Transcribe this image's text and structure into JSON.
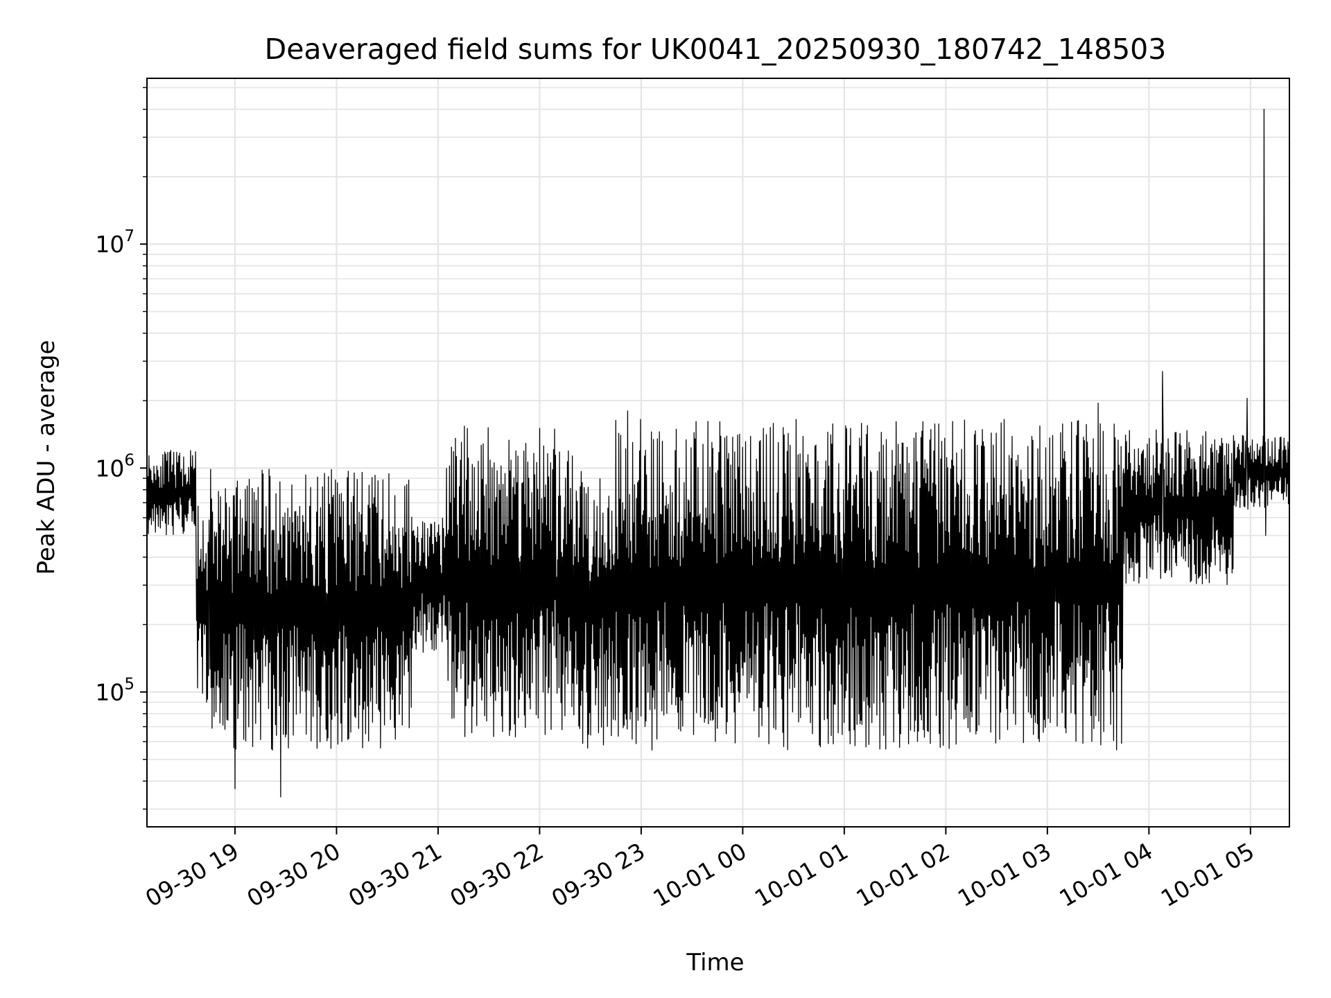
{
  "chart_data": {
    "type": "line",
    "title": "Deaveraged field sums for UK0041_20250930_180742_148503",
    "xlabel": "Time",
    "ylabel": "Peak ADU - average",
    "yscale": "log",
    "ylim": [
      25000,
      55000000
    ],
    "xlim": [
      "2025-09-30 18:08",
      "2025-10-01 05:23"
    ],
    "x_ticks": [
      {
        "value": "2025-09-30 19:00",
        "label": "09-30 19"
      },
      {
        "value": "2025-09-30 20:00",
        "label": "09-30 20"
      },
      {
        "value": "2025-09-30 21:00",
        "label": "09-30 21"
      },
      {
        "value": "2025-09-30 22:00",
        "label": "09-30 22"
      },
      {
        "value": "2025-09-30 23:00",
        "label": "09-30 23"
      },
      {
        "value": "2025-10-01 00:00",
        "label": "10-01 00"
      },
      {
        "value": "2025-10-01 01:00",
        "label": "10-01 01"
      },
      {
        "value": "2025-10-01 02:00",
        "label": "10-01 02"
      },
      {
        "value": "2025-10-01 03:00",
        "label": "10-01 03"
      },
      {
        "value": "2025-10-01 04:00",
        "label": "10-01 04"
      },
      {
        "value": "2025-10-01 05:00",
        "label": "10-01 05"
      }
    ],
    "y_ticks": [
      {
        "value": 100000,
        "base": "10",
        "exp": "5"
      },
      {
        "value": 1000000,
        "base": "10",
        "exp": "6"
      },
      {
        "value": 10000000,
        "base": "10",
        "exp": "7"
      }
    ],
    "grid": true,
    "line_color": "#000000",
    "grid_color": "#e5e5e5",
    "segments": [
      {
        "start": "2025-09-30 18:08",
        "end": "2025-09-30 18:37",
        "low": 500000,
        "high": 1200000
      },
      {
        "start": "2025-09-30 18:37",
        "end": "2025-09-30 18:45",
        "low": 90000,
        "high": 700000
      },
      {
        "start": "2025-09-30 18:45",
        "end": "2025-09-30 20:45",
        "low": 55000,
        "high": 1000000
      },
      {
        "start": "2025-09-30 20:45",
        "end": "2025-09-30 21:05",
        "low": 150000,
        "high": 600000
      },
      {
        "start": "2025-09-30 21:05",
        "end": "2025-09-30 22:10",
        "low": 60000,
        "high": 1600000
      },
      {
        "start": "2025-09-30 22:10",
        "end": "2025-09-30 22:45",
        "low": 55000,
        "high": 1200000
      },
      {
        "start": "2025-09-30 22:45",
        "end": "2025-10-01 03:45",
        "low": 55000,
        "high": 1650000
      },
      {
        "start": "2025-10-01 03:45",
        "end": "2025-10-01 04:50",
        "low": 300000,
        "high": 1500000
      },
      {
        "start": "2025-10-01 04:50",
        "end": "2025-10-01 05:23",
        "low": 650000,
        "high": 1400000
      }
    ],
    "notable_points": [
      {
        "x": "2025-09-30 19:00",
        "y": 37000
      },
      {
        "x": "2025-09-30 19:27",
        "y": 34000
      },
      {
        "x": "2025-09-30 22:52",
        "y": 1800000
      },
      {
        "x": "2025-10-01 03:30",
        "y": 1950000
      },
      {
        "x": "2025-10-01 04:08",
        "y": 2700000
      },
      {
        "x": "2025-10-01 04:58",
        "y": 2050000
      },
      {
        "x": "2025-10-01 05:08",
        "y": 40000000
      },
      {
        "x": "2025-10-01 05:09",
        "y": 500000
      }
    ]
  }
}
